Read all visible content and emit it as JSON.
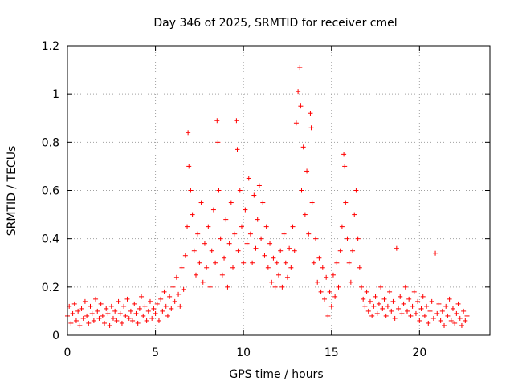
{
  "chart_data": {
    "type": "scatter",
    "title": "Day 346 of 2025, SRMTID for receiver cmel",
    "xlabel": "GPS time / hours",
    "ylabel": "SRMTID / TECUs",
    "xlim": [
      0,
      24
    ],
    "ylim": [
      0,
      1.2
    ],
    "xticks": [
      0,
      5,
      10,
      15,
      20
    ],
    "yticks": [
      0,
      0.2,
      0.4,
      0.6,
      0.8,
      1,
      1.2
    ],
    "xtick_labels": [
      "0",
      "5",
      "10",
      "15",
      "20"
    ],
    "ytick_labels": [
      "0",
      "0.2",
      "0.4",
      "0.6",
      "0.8",
      "1",
      "1.2"
    ],
    "grid": true,
    "marker": "plus",
    "series": [
      {
        "name": "SRMTID",
        "color": "#ff0000",
        "points": [
          [
            0.0,
            0.08
          ],
          [
            0.1,
            0.12
          ],
          [
            0.2,
            0.05
          ],
          [
            0.3,
            0.09
          ],
          [
            0.4,
            0.13
          ],
          [
            0.5,
            0.06
          ],
          [
            0.6,
            0.1
          ],
          [
            0.7,
            0.04
          ],
          [
            0.8,
            0.11
          ],
          [
            0.9,
            0.07
          ],
          [
            1.0,
            0.14
          ],
          [
            1.1,
            0.08
          ],
          [
            1.2,
            0.05
          ],
          [
            1.3,
            0.12
          ],
          [
            1.4,
            0.09
          ],
          [
            1.5,
            0.06
          ],
          [
            1.6,
            0.15
          ],
          [
            1.7,
            0.1
          ],
          [
            1.8,
            0.07
          ],
          [
            1.9,
            0.13
          ],
          [
            2.0,
            0.08
          ],
          [
            2.1,
            0.05
          ],
          [
            2.2,
            0.11
          ],
          [
            2.3,
            0.09
          ],
          [
            2.4,
            0.04
          ],
          [
            2.5,
            0.12
          ],
          [
            2.6,
            0.07
          ],
          [
            2.7,
            0.1
          ],
          [
            2.8,
            0.06
          ],
          [
            2.9,
            0.14
          ],
          [
            3.0,
            0.09
          ],
          [
            3.1,
            0.05
          ],
          [
            3.2,
            0.12
          ],
          [
            3.3,
            0.08
          ],
          [
            3.4,
            0.15
          ],
          [
            3.5,
            0.07
          ],
          [
            3.6,
            0.1
          ],
          [
            3.7,
            0.06
          ],
          [
            3.8,
            0.13
          ],
          [
            3.9,
            0.09
          ],
          [
            4.0,
            0.05
          ],
          [
            4.1,
            0.11
          ],
          [
            4.2,
            0.16
          ],
          [
            4.3,
            0.08
          ],
          [
            4.4,
            0.12
          ],
          [
            4.5,
            0.06
          ],
          [
            4.6,
            0.1
          ],
          [
            4.7,
            0.14
          ],
          [
            4.8,
            0.07
          ],
          [
            4.9,
            0.11
          ],
          [
            5.0,
            0.09
          ],
          [
            5.1,
            0.13
          ],
          [
            5.2,
            0.06
          ],
          [
            5.3,
            0.15
          ],
          [
            5.4,
            0.1
          ],
          [
            5.5,
            0.18
          ],
          [
            5.6,
            0.12
          ],
          [
            5.7,
            0.08
          ],
          [
            5.8,
            0.16
          ],
          [
            5.9,
            0.11
          ],
          [
            6.0,
            0.2
          ],
          [
            6.1,
            0.14
          ],
          [
            6.2,
            0.24
          ],
          [
            6.3,
            0.17
          ],
          [
            6.4,
            0.12
          ],
          [
            6.5,
            0.28
          ],
          [
            6.6,
            0.19
          ],
          [
            6.7,
            0.33
          ],
          [
            6.8,
            0.45
          ],
          [
            6.85,
            0.84
          ],
          [
            6.9,
            0.7
          ],
          [
            7.0,
            0.6
          ],
          [
            7.1,
            0.5
          ],
          [
            7.2,
            0.35
          ],
          [
            7.3,
            0.25
          ],
          [
            7.4,
            0.42
          ],
          [
            7.5,
            0.3
          ],
          [
            7.6,
            0.55
          ],
          [
            7.7,
            0.22
          ],
          [
            7.8,
            0.38
          ],
          [
            7.9,
            0.28
          ],
          [
            8.0,
            0.45
          ],
          [
            8.1,
            0.2
          ],
          [
            8.2,
            0.35
          ],
          [
            8.3,
            0.52
          ],
          [
            8.4,
            0.3
          ],
          [
            8.5,
            0.89
          ],
          [
            8.55,
            0.8
          ],
          [
            8.6,
            0.6
          ],
          [
            8.7,
            0.4
          ],
          [
            8.8,
            0.25
          ],
          [
            8.9,
            0.32
          ],
          [
            9.0,
            0.48
          ],
          [
            9.1,
            0.2
          ],
          [
            9.2,
            0.38
          ],
          [
            9.3,
            0.55
          ],
          [
            9.4,
            0.28
          ],
          [
            9.5,
            0.42
          ],
          [
            9.6,
            0.89
          ],
          [
            9.65,
            0.77
          ],
          [
            9.7,
            0.35
          ],
          [
            9.8,
            0.6
          ],
          [
            9.9,
            0.45
          ],
          [
            10.0,
            0.3
          ],
          [
            10.1,
            0.52
          ],
          [
            10.2,
            0.38
          ],
          [
            10.3,
            0.65
          ],
          [
            10.4,
            0.42
          ],
          [
            10.5,
            0.3
          ],
          [
            10.6,
            0.58
          ],
          [
            10.7,
            0.36
          ],
          [
            10.8,
            0.48
          ],
          [
            10.9,
            0.62
          ],
          [
            11.0,
            0.4
          ],
          [
            11.1,
            0.55
          ],
          [
            11.2,
            0.33
          ],
          [
            11.3,
            0.45
          ],
          [
            11.4,
            0.28
          ],
          [
            11.5,
            0.38
          ],
          [
            11.6,
            0.22
          ],
          [
            11.7,
            0.32
          ],
          [
            11.8,
            0.2
          ],
          [
            11.9,
            0.3
          ],
          [
            12.0,
            0.25
          ],
          [
            12.1,
            0.35
          ],
          [
            12.2,
            0.2
          ],
          [
            12.3,
            0.42
          ],
          [
            12.4,
            0.3
          ],
          [
            12.5,
            0.24
          ],
          [
            12.6,
            0.36
          ],
          [
            12.7,
            0.28
          ],
          [
            12.8,
            0.45
          ],
          [
            12.9,
            0.35
          ],
          [
            13.0,
            0.88
          ],
          [
            13.1,
            1.01
          ],
          [
            13.2,
            1.11
          ],
          [
            13.25,
            0.95
          ],
          [
            13.3,
            0.6
          ],
          [
            13.4,
            0.78
          ],
          [
            13.5,
            0.5
          ],
          [
            13.6,
            0.68
          ],
          [
            13.7,
            0.42
          ],
          [
            13.8,
            0.92
          ],
          [
            13.85,
            0.86
          ],
          [
            13.9,
            0.55
          ],
          [
            14.0,
            0.3
          ],
          [
            14.1,
            0.4
          ],
          [
            14.2,
            0.22
          ],
          [
            14.3,
            0.32
          ],
          [
            14.4,
            0.18
          ],
          [
            14.5,
            0.28
          ],
          [
            14.6,
            0.15
          ],
          [
            14.7,
            0.24
          ],
          [
            14.8,
            0.08
          ],
          [
            14.9,
            0.18
          ],
          [
            15.0,
            0.12
          ],
          [
            15.1,
            0.25
          ],
          [
            15.2,
            0.16
          ],
          [
            15.3,
            0.3
          ],
          [
            15.4,
            0.2
          ],
          [
            15.5,
            0.35
          ],
          [
            15.6,
            0.45
          ],
          [
            15.7,
            0.75
          ],
          [
            15.75,
            0.7
          ],
          [
            15.8,
            0.55
          ],
          [
            15.9,
            0.4
          ],
          [
            16.0,
            0.3
          ],
          [
            16.1,
            0.22
          ],
          [
            16.2,
            0.35
          ],
          [
            16.3,
            0.5
          ],
          [
            16.4,
            0.6
          ],
          [
            16.5,
            0.4
          ],
          [
            16.6,
            0.28
          ],
          [
            16.7,
            0.2
          ],
          [
            16.8,
            0.15
          ],
          [
            16.9,
            0.12
          ],
          [
            17.0,
            0.18
          ],
          [
            17.1,
            0.1
          ],
          [
            17.2,
            0.14
          ],
          [
            17.3,
            0.08
          ],
          [
            17.4,
            0.12
          ],
          [
            17.5,
            0.16
          ],
          [
            17.6,
            0.09
          ],
          [
            17.7,
            0.13
          ],
          [
            17.8,
            0.2
          ],
          [
            17.9,
            0.11
          ],
          [
            18.0,
            0.15
          ],
          [
            18.1,
            0.08
          ],
          [
            18.2,
            0.12
          ],
          [
            18.3,
            0.18
          ],
          [
            18.4,
            0.1
          ],
          [
            18.5,
            0.14
          ],
          [
            18.6,
            0.07
          ],
          [
            18.7,
            0.36
          ],
          [
            18.8,
            0.11
          ],
          [
            18.9,
            0.16
          ],
          [
            19.0,
            0.09
          ],
          [
            19.1,
            0.13
          ],
          [
            19.2,
            0.2
          ],
          [
            19.3,
            0.1
          ],
          [
            19.4,
            0.15
          ],
          [
            19.5,
            0.08
          ],
          [
            19.6,
            0.12
          ],
          [
            19.7,
            0.18
          ],
          [
            19.8,
            0.09
          ],
          [
            19.9,
            0.14
          ],
          [
            20.0,
            0.06
          ],
          [
            20.1,
            0.11
          ],
          [
            20.2,
            0.16
          ],
          [
            20.3,
            0.08
          ],
          [
            20.4,
            0.12
          ],
          [
            20.5,
            0.05
          ],
          [
            20.6,
            0.1
          ],
          [
            20.7,
            0.14
          ],
          [
            20.8,
            0.07
          ],
          [
            20.9,
            0.34
          ],
          [
            21.0,
            0.09
          ],
          [
            21.1,
            0.13
          ],
          [
            21.2,
            0.06
          ],
          [
            21.3,
            0.1
          ],
          [
            21.4,
            0.04
          ],
          [
            21.5,
            0.12
          ],
          [
            21.6,
            0.08
          ],
          [
            21.7,
            0.15
          ],
          [
            21.8,
            0.06
          ],
          [
            21.9,
            0.11
          ],
          [
            22.0,
            0.05
          ],
          [
            22.1,
            0.09
          ],
          [
            22.2,
            0.13
          ],
          [
            22.3,
            0.07
          ],
          [
            22.4,
            0.04
          ],
          [
            22.5,
            0.1
          ],
          [
            22.6,
            0.06
          ],
          [
            22.7,
            0.08
          ]
        ]
      }
    ]
  }
}
